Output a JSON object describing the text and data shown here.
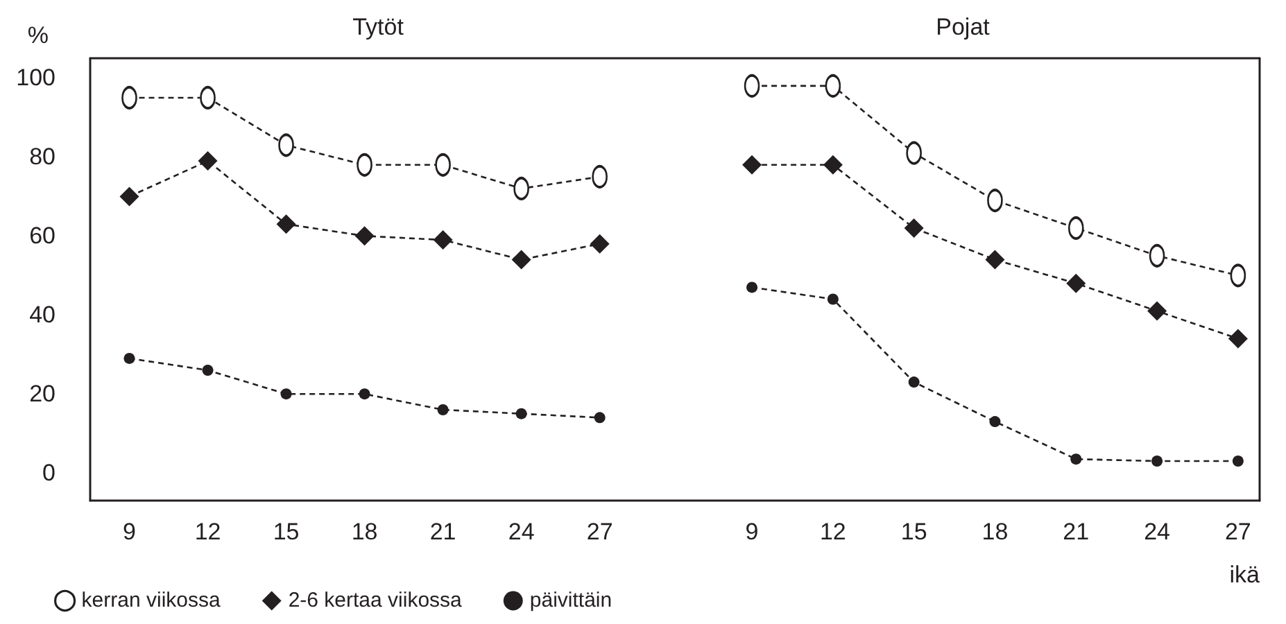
{
  "chart_data": [
    {
      "type": "line",
      "title": "Tytöt",
      "ylabel": "%",
      "x": [
        9,
        12,
        15,
        18,
        21,
        24,
        27
      ],
      "xlim": [
        7.5,
        29
      ],
      "xticks": [
        9,
        12,
        15,
        18,
        21,
        24,
        27
      ],
      "ylim": [
        -7,
        105
      ],
      "yticks": [
        0,
        20,
        40,
        60,
        80,
        100
      ],
      "line_style": "dashed",
      "legend": "bottom left",
      "grid": false,
      "series": [
        {
          "name": "kerran viikossa",
          "color": "#231f20",
          "marker": "circle",
          "values": [
            95,
            95,
            83,
            78,
            78,
            72,
            75
          ]
        },
        {
          "name": "2-6 kertaa viikossa",
          "color": "#231f20",
          "marker": "diamond",
          "values": [
            70,
            79,
            63,
            60,
            59,
            54,
            58
          ]
        },
        {
          "name": "päivittäin",
          "color": "#231f20",
          "marker": "circle",
          "values": [
            29,
            26,
            20,
            20,
            16,
            15,
            14
          ]
        }
      ]
    },
    {
      "type": "line",
      "title": "Pojat",
      "xlabel": "ikä",
      "x": [
        9,
        12,
        15,
        18,
        21,
        24,
        27
      ],
      "xlim": [
        5.3,
        27.8
      ],
      "xticks": [
        9,
        12,
        15,
        18,
        21,
        24,
        27
      ],
      "ylim": [
        -7,
        105
      ],
      "yticks": [
        0,
        20,
        40,
        60,
        80,
        100
      ],
      "line_style": "dashed",
      "tick_labels": "x",
      "grid": false,
      "series": [
        {
          "color": "#231f20",
          "marker": "circle",
          "values": [
            98,
            98,
            81,
            69,
            62,
            55,
            50
          ]
        },
        {
          "color": "#231f20",
          "marker": "diamond",
          "values": [
            78,
            78,
            62,
            54,
            48,
            41,
            34
          ]
        },
        {
          "color": "#231f20",
          "marker": "circle",
          "values": [
            47,
            44,
            23,
            13,
            3.5,
            3,
            3
          ]
        }
      ]
    }
  ]
}
